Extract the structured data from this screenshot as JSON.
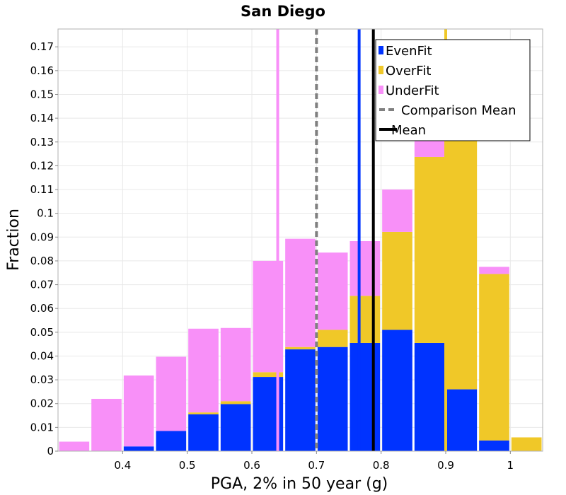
{
  "chart_data": {
    "type": "bar",
    "stacked": true,
    "title": "San Diego",
    "xlabel": "PGA, 2% in 50 year (g)",
    "ylabel": "Fraction",
    "xlim": [
      0.3,
      1.05
    ],
    "ylim": [
      0,
      0.1775
    ],
    "bin_width": 0.05,
    "x": [
      0.325,
      0.375,
      0.425,
      0.475,
      0.525,
      0.575,
      0.625,
      0.675,
      0.725,
      0.775,
      0.825,
      0.875,
      0.925,
      0.975,
      1.025
    ],
    "series": [
      {
        "name": "EvenFit",
        "color": "#0033ff",
        "values": [
          0,
          0,
          0.002,
          0.0085,
          0.0155,
          0.0198,
          0.0312,
          0.0428,
          0.0438,
          0.0455,
          0.051,
          0.0455,
          0.026,
          0.0045,
          0
        ]
      },
      {
        "name": "OverFit",
        "color": "#f0c828",
        "values": [
          0,
          0,
          0,
          0,
          0.0008,
          0.0012,
          0.002,
          0.001,
          0.0072,
          0.0198,
          0.0412,
          0.0782,
          0.1065,
          0.07,
          0.0058
        ]
      },
      {
        "name": "UnderFit",
        "color": "#f890f8",
        "values": [
          0.004,
          0.022,
          0.0298,
          0.0312,
          0.0352,
          0.0308,
          0.0468,
          0.0455,
          0.0325,
          0.023,
          0.0178,
          0.0108,
          0,
          0.003,
          0
        ]
      }
    ],
    "x_ticks": [
      "0.4",
      "0.5",
      "0.6",
      "0.7",
      "0.8",
      "0.9",
      "1"
    ],
    "x_tick_values": [
      0.4,
      0.5,
      0.6,
      0.7,
      0.8,
      0.9,
      1.0
    ],
    "y_ticks": [
      "0",
      "0.01",
      "0.02",
      "0.03",
      "0.04",
      "0.05",
      "0.06",
      "0.07",
      "0.08",
      "0.09",
      "0.1",
      "0.11",
      "0.12",
      "0.13",
      "0.14",
      "0.15",
      "0.16",
      "0.17"
    ],
    "y_tick_values": [
      0,
      0.01,
      0.02,
      0.03,
      0.04,
      0.05,
      0.06,
      0.07,
      0.08,
      0.09,
      0.1,
      0.11,
      0.12,
      0.13,
      0.14,
      0.15,
      0.16,
      0.17
    ],
    "vertical_lines": [
      {
        "name": "UnderFit mean",
        "x": 0.64,
        "color": "#f890f8",
        "style": "solid"
      },
      {
        "name": "Comparison Mean",
        "x": 0.7,
        "color": "#808080",
        "style": "dashed"
      },
      {
        "name": "EvenFit mean",
        "x": 0.766,
        "color": "#0033ff",
        "style": "solid"
      },
      {
        "name": "Mean",
        "x": 0.788,
        "color": "#000000",
        "style": "solid"
      },
      {
        "name": "OverFit mean",
        "x": 0.9,
        "color": "#f0c828",
        "style": "solid"
      }
    ],
    "legend": {
      "position": "top-right",
      "entries": [
        {
          "label": "EvenFit",
          "kind": "box",
          "color": "#0033ff"
        },
        {
          "label": "OverFit",
          "kind": "box",
          "color": "#f0c828"
        },
        {
          "label": "UnderFit",
          "kind": "box",
          "color": "#f890f8"
        },
        {
          "label": "Comparison Mean",
          "kind": "dashed",
          "color": "#808080"
        },
        {
          "label": "Mean",
          "kind": "line",
          "color": "#000000"
        }
      ]
    },
    "grid": true
  }
}
